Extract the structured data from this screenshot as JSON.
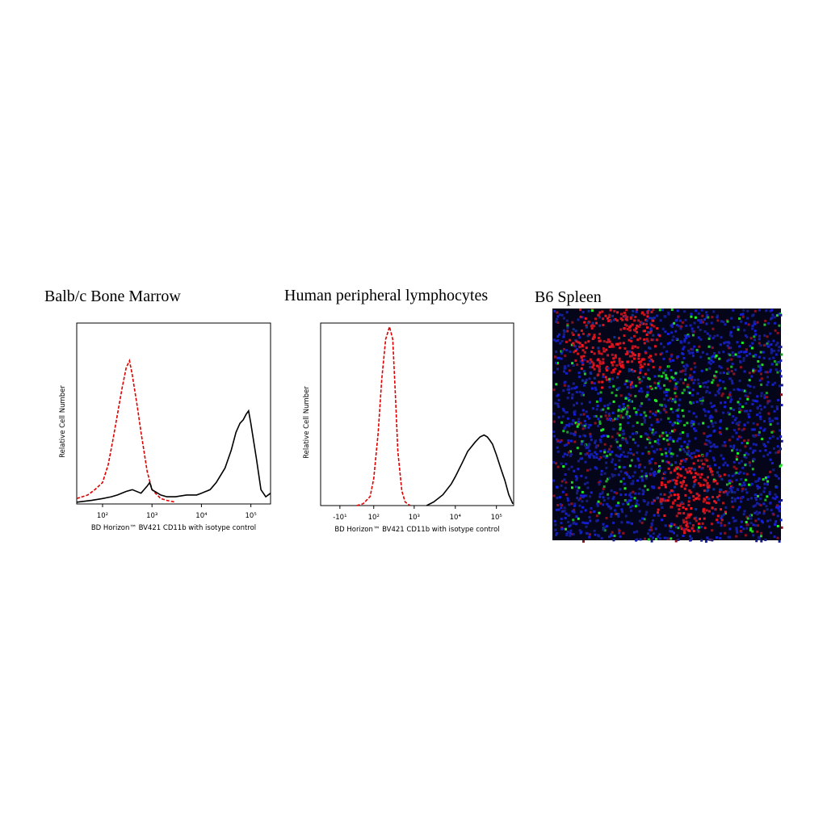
{
  "chart_data": [
    {
      "type": "line",
      "title": "Balb/c Bone Marrow",
      "x_label": "BD Horizon™ BV421 CD11b with isotype control",
      "y_label": "Relative Cell Number",
      "xscale": "biexponential",
      "xlim": [
        30,
        250000
      ],
      "ylim": [
        0,
        100
      ],
      "xticks": [
        {
          "value": 100,
          "label": "10²"
        },
        {
          "value": 1000,
          "label": "10³"
        },
        {
          "value": 10000,
          "label": "10⁴"
        },
        {
          "value": 100000,
          "label": "10⁵"
        }
      ],
      "series": [
        {
          "color": "#e00000",
          "dash": true,
          "x": [
            30,
            50,
            70,
            100,
            130,
            160,
            200,
            250,
            300,
            350,
            400,
            500,
            600,
            800,
            1000,
            1500,
            2000,
            3000
          ],
          "values": [
            3,
            5,
            8,
            12,
            22,
            35,
            50,
            65,
            76,
            80,
            72,
            55,
            40,
            18,
            8,
            3,
            2,
            1
          ]
        },
        {
          "color": "#000000",
          "dash": false,
          "x": [
            30,
            60,
            100,
            150,
            200,
            300,
            400,
            600,
            800,
            900,
            1000,
            1500,
            2000,
            3000,
            5000,
            8000,
            10000,
            15000,
            20000,
            30000,
            40000,
            50000,
            60000,
            70000,
            80000,
            90000,
            100000,
            130000,
            160000,
            200000,
            250000
          ],
          "values": [
            1,
            2,
            3,
            4,
            5,
            7,
            8,
            6,
            10,
            12,
            8,
            5,
            4,
            4,
            5,
            5,
            6,
            8,
            12,
            20,
            30,
            40,
            45,
            47,
            50,
            52,
            45,
            25,
            8,
            4,
            6
          ]
        }
      ]
    },
    {
      "type": "line",
      "title": "Human peripheral lymphocytes",
      "x_label": "BD Horizon™ BV421 CD11b with isotype control",
      "y_label": "Relative Cell Number",
      "xscale": "biexponential",
      "xlim": [
        -70,
        262000
      ],
      "ylim": [
        0,
        100
      ],
      "xticks": [
        {
          "value": -10,
          "label": "-10¹"
        },
        {
          "value": 100,
          "label": "10²"
        },
        {
          "value": 1000,
          "label": "10³"
        },
        {
          "value": 10000,
          "label": "10⁴"
        },
        {
          "value": 100000,
          "label": "10⁵"
        }
      ],
      "series": [
        {
          "color": "#e00000",
          "dash": true,
          "x": [
            30,
            50,
            80,
            100,
            130,
            160,
            200,
            250,
            300,
            350,
            400,
            500,
            600,
            800
          ],
          "values": [
            0,
            1,
            5,
            15,
            40,
            70,
            92,
            99,
            92,
            60,
            30,
            8,
            2,
            0
          ]
        },
        {
          "color": "#000000",
          "dash": false,
          "x": [
            2000,
            3000,
            5000,
            8000,
            10000,
            15000,
            20000,
            30000,
            40000,
            50000,
            60000,
            70000,
            80000,
            100000,
            130000,
            160000,
            200000,
            250000
          ],
          "values": [
            0,
            2,
            6,
            12,
            16,
            24,
            30,
            35,
            38,
            39,
            38,
            36,
            34,
            28,
            20,
            14,
            6,
            1
          ]
        }
      ]
    }
  ],
  "image_panel": {
    "title": "B6 Spleen"
  }
}
